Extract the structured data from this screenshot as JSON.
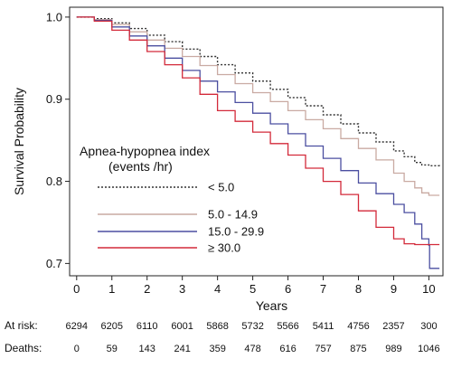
{
  "chart_data": {
    "type": "line",
    "xlabel": "Years",
    "ylabel": "Survival Probability",
    "xlim": [
      -0.2,
      10.4
    ],
    "ylim": [
      0.685,
      1.012
    ],
    "x_ticks": [
      "0",
      "1",
      "2",
      "3",
      "4",
      "5",
      "6",
      "7",
      "8",
      "9",
      "10"
    ],
    "y_ticks": [
      "0.7",
      "0.8",
      "0.9",
      "1.0"
    ],
    "legend": {
      "title_line1": "Apnea-hypopnea index",
      "title_line2": "(events /hr)",
      "placement": "lower-left"
    },
    "series": [
      {
        "name": "< 5.0",
        "color": "#333333",
        "style": "dotted",
        "x": [
          0,
          0.5,
          1,
          1.5,
          2,
          2.5,
          3,
          3.5,
          4,
          4.5,
          5,
          5.5,
          6,
          6.5,
          7,
          7.5,
          8,
          8.5,
          9,
          9.3,
          9.6,
          9.8,
          10,
          10.3
        ],
        "y": [
          1.0,
          0.998,
          0.993,
          0.986,
          0.978,
          0.97,
          0.961,
          0.952,
          0.942,
          0.932,
          0.922,
          0.912,
          0.902,
          0.892,
          0.881,
          0.87,
          0.859,
          0.848,
          0.837,
          0.83,
          0.823,
          0.82,
          0.819,
          0.818
        ]
      },
      {
        "name": "5.0 - 14.9",
        "color": "#c9aaa2",
        "style": "solid",
        "x": [
          0,
          0.5,
          1,
          1.5,
          2,
          2.5,
          3,
          3.5,
          4,
          4.5,
          5,
          5.5,
          6,
          6.5,
          7,
          7.5,
          8,
          8.5,
          9,
          9.3,
          9.6,
          9.8,
          10,
          10.3
        ],
        "y": [
          1.0,
          0.997,
          0.991,
          0.982,
          0.972,
          0.962,
          0.952,
          0.941,
          0.93,
          0.919,
          0.908,
          0.897,
          0.886,
          0.875,
          0.864,
          0.852,
          0.84,
          0.826,
          0.81,
          0.8,
          0.792,
          0.786,
          0.783,
          0.783
        ]
      },
      {
        "name": "15.0 - 29.9",
        "color": "#4b4fa0",
        "style": "solid",
        "x": [
          0,
          0.5,
          1,
          1.5,
          2,
          2.5,
          3,
          3.5,
          4,
          4.5,
          5,
          5.5,
          6,
          6.5,
          7,
          7.5,
          8,
          8.5,
          9,
          9.3,
          9.6,
          9.8,
          10,
          10.02,
          10.3
        ],
        "y": [
          1.0,
          0.996,
          0.988,
          0.977,
          0.965,
          0.95,
          0.935,
          0.922,
          0.909,
          0.896,
          0.883,
          0.87,
          0.858,
          0.843,
          0.828,
          0.813,
          0.798,
          0.785,
          0.772,
          0.762,
          0.748,
          0.73,
          0.722,
          0.694,
          0.694
        ]
      },
      {
        "name": "≥ 30.0",
        "color": "#d32a3a",
        "style": "solid",
        "x": [
          0,
          0.5,
          1,
          1.5,
          2,
          2.5,
          3,
          3.5,
          4,
          4.5,
          5,
          5.5,
          6,
          6.5,
          7,
          7.5,
          8,
          8.5,
          9,
          9.3,
          9.6,
          9.8,
          10,
          10.3
        ],
        "y": [
          1.0,
          0.995,
          0.984,
          0.972,
          0.958,
          0.942,
          0.926,
          0.906,
          0.886,
          0.873,
          0.86,
          0.846,
          0.832,
          0.816,
          0.8,
          0.784,
          0.764,
          0.744,
          0.73,
          0.724,
          0.723,
          0.723,
          0.723,
          0.723
        ]
      }
    ],
    "risk_table": {
      "at_risk_label": "At risk:",
      "at_risk": [
        "6294",
        "6205",
        "6110",
        "6001",
        "5868",
        "5732",
        "5566",
        "5411",
        "4756",
        "2357",
        "300"
      ],
      "deaths_label": "Deaths:",
      "deaths": [
        "0",
        "59",
        "143",
        "241",
        "359",
        "478",
        "616",
        "757",
        "875",
        "989",
        "1046"
      ]
    }
  }
}
